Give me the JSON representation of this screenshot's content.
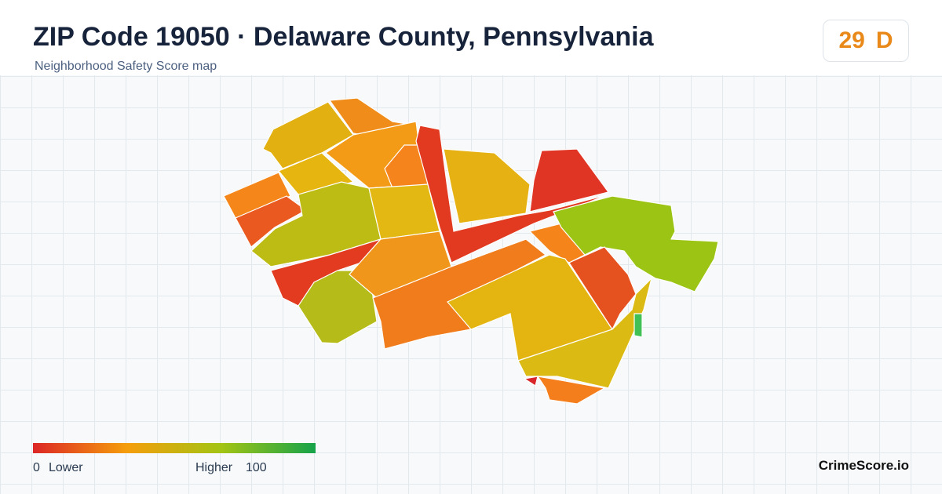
{
  "header": {
    "title": "ZIP Code 19050 · Delaware County, Pennsylvania",
    "subtitle": "Neighborhood Safety Score map"
  },
  "score": {
    "value": 29,
    "grade": "D"
  },
  "legend": {
    "min": 0,
    "min_label": "Lower",
    "max_label": "Higher",
    "max": 100
  },
  "footer": {
    "brand": "CrimeScore.io"
  }
}
